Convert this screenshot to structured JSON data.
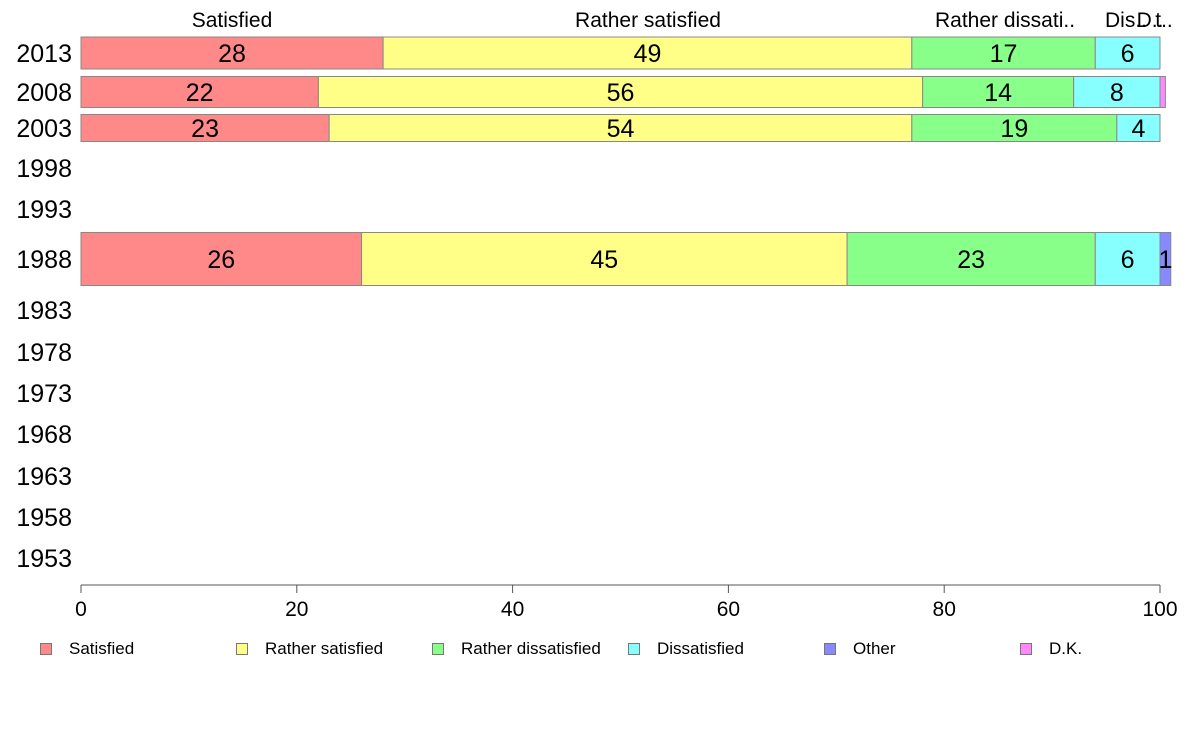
{
  "chart_data": {
    "type": "bar",
    "orientation": "horizontal",
    "stacked": true,
    "categories": [
      "2013",
      "2008",
      "2003",
      "1998",
      "1993",
      "1988",
      "1983",
      "1978",
      "1973",
      "1968",
      "1963",
      "1958",
      "1953"
    ],
    "series": [
      {
        "name": "Satisfied",
        "color": "#ff8888",
        "values": [
          28,
          22,
          23,
          null,
          null,
          26,
          null,
          null,
          null,
          null,
          null,
          null,
          null
        ]
      },
      {
        "name": "Rather satisfied",
        "color": "#ffff88",
        "values": [
          49,
          56,
          54,
          null,
          null,
          45,
          null,
          null,
          null,
          null,
          null,
          null,
          null
        ]
      },
      {
        "name": "Rather dissatisfied",
        "color": "#88ff88",
        "values": [
          17,
          14,
          19,
          null,
          null,
          23,
          null,
          null,
          null,
          null,
          null,
          null,
          null
        ]
      },
      {
        "name": "Dissatisfied",
        "color": "#88ffff",
        "values": [
          6,
          8,
          4,
          null,
          null,
          6,
          null,
          null,
          null,
          null,
          null,
          null,
          null
        ]
      },
      {
        "name": "Other",
        "color": "#8888ff",
        "values": [
          0,
          0,
          0,
          null,
          null,
          1,
          null,
          null,
          null,
          null,
          null,
          null,
          null
        ]
      },
      {
        "name": "D.K.",
        "color": "#ff88ff",
        "values": [
          0,
          0.5,
          0,
          null,
          null,
          0,
          null,
          null,
          null,
          null,
          null,
          null,
          null
        ]
      }
    ],
    "data_labels": [
      [
        "28",
        "49",
        "17",
        "6",
        "",
        ""
      ],
      [
        "22",
        "56",
        "14",
        "8",
        "",
        ""
      ],
      [
        "23",
        "54",
        "19",
        "4",
        "",
        ""
      ],
      [],
      [],
      [
        "26",
        "45",
        "23",
        "6",
        "1",
        ""
      ],
      [],
      [],
      [],
      [],
      [],
      [],
      []
    ],
    "top_labels": [
      "Satisfied",
      "Rather satisfied",
      "Rather dissati..",
      "Dis..",
      "D..",
      "t.."
    ],
    "xlim": [
      0,
      100
    ],
    "xticks": [
      "0",
      "20",
      "40",
      "60",
      "80",
      "100"
    ],
    "grid": false,
    "legend_position": "bottom"
  }
}
